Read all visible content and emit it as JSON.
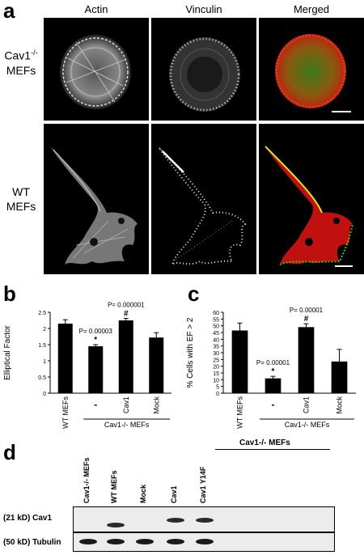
{
  "panel_a": {
    "label": "a",
    "columns": [
      "Actin",
      "Vinculin",
      "Merged"
    ],
    "rows": [
      {
        "label_line1": "Cav1",
        "label_sup": "-/-",
        "label_line2": "MEFs"
      },
      {
        "label_line1": "WT",
        "label_sup": "",
        "label_line2": "MEFs"
      }
    ]
  },
  "panel_b": {
    "label": "b"
  },
  "panel_c": {
    "label": "c"
  },
  "panel_d": {
    "label": "d",
    "group_label": "Cav1-/- MEFs",
    "lanes": [
      "Cav1-/- MEFs",
      "WT MEFs",
      "Mock",
      "Cav1",
      "Cav1 Y14F"
    ],
    "blots": [
      {
        "label": "(21 kD) Cav1",
        "presence": [
          0,
          1,
          0,
          1,
          1
        ]
      },
      {
        "label": "(50 kD) Tubulin",
        "presence": [
          1,
          1,
          1,
          1,
          1
        ]
      }
    ]
  },
  "chart_data": [
    {
      "type": "bar",
      "categories": [
        "WT MEFs",
        "-",
        "Cav1",
        "Mock"
      ],
      "values": [
        2.15,
        1.45,
        2.25,
        1.72
      ],
      "errors": [
        0.12,
        0.05,
        0.06,
        0.15
      ],
      "ylabel": "Elliptical Factor",
      "ylim": [
        0,
        2.5
      ],
      "yticks": [
        "0",
        "0.5",
        "1",
        "1.5",
        "2",
        "2.5"
      ],
      "group_label": "Cav1-/- MEFs",
      "annotations": [
        {
          "category": "-",
          "pvalue": "P= 0.00003",
          "mark": "*"
        },
        {
          "category": "Cav1",
          "pvalue": "P= 0.000001",
          "mark": "#"
        }
      ],
      "grid": false
    },
    {
      "type": "bar",
      "categories": [
        "WT MEFs",
        "-",
        "Cav1",
        "Mock"
      ],
      "values": [
        46.5,
        11,
        49,
        23.5
      ],
      "errors": [
        5.5,
        1.5,
        2.5,
        9
      ],
      "ylabel": "% Cells with EF > 2",
      "ylim": [
        0,
        60
      ],
      "yticks": [
        "0",
        "5",
        "10",
        "15",
        "20",
        "25",
        "30",
        "35",
        "40",
        "45",
        "50",
        "55",
        "60"
      ],
      "group_label": "Cav1-/- MEFs",
      "annotations": [
        {
          "category": "-",
          "pvalue": "P= 0.00001",
          "mark": "*"
        },
        {
          "category": "Cav1",
          "pvalue": "P= 0.00001",
          "mark": "#"
        }
      ],
      "grid": false
    }
  ]
}
